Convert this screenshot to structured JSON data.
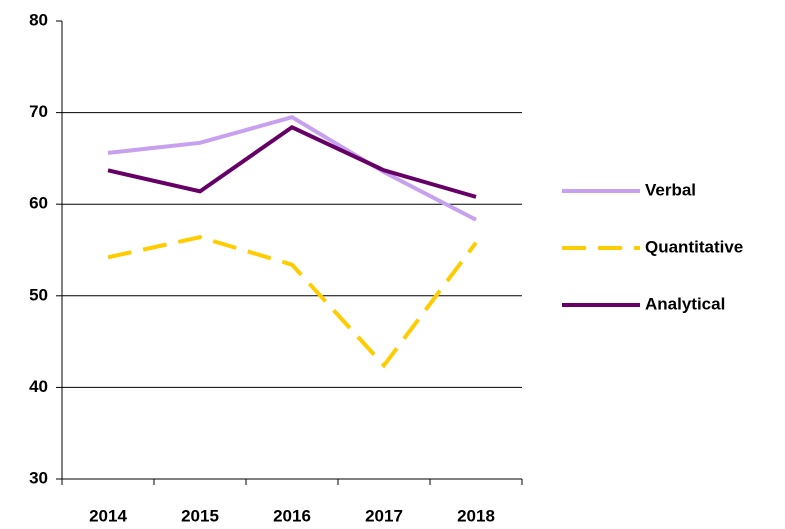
{
  "chart_data": {
    "type": "line",
    "categories": [
      "2014",
      "2015",
      "2016",
      "2017",
      "2018"
    ],
    "series": [
      {
        "name": "Verbal",
        "color": "#c8a0f0",
        "dashed": false,
        "values": [
          65.6,
          66.7,
          69.5,
          63.5,
          58.3
        ]
      },
      {
        "name": "Quantitative",
        "color": "#ffcc00",
        "dashed": true,
        "values": [
          54.2,
          56.4,
          53.4,
          42.4,
          55.8
        ]
      },
      {
        "name": "Analytical",
        "color": "#660066",
        "dashed": false,
        "values": [
          63.7,
          61.4,
          68.4,
          63.7,
          60.8
        ]
      }
    ],
    "ylim": [
      30,
      80
    ],
    "yticks": [
      30,
      40,
      50,
      60,
      70,
      80
    ],
    "grid": true,
    "legend": "right"
  }
}
